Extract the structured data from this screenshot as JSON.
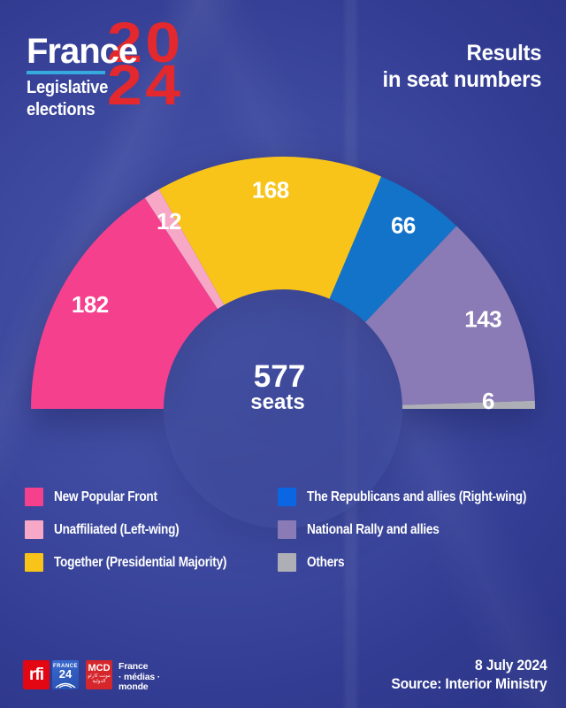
{
  "header": {
    "logo": {
      "brand": "France",
      "year_lines": [
        "20",
        "24"
      ],
      "tagline_lines": [
        "Legislative",
        "elections"
      ],
      "brand_color": "#ffffff",
      "year_color": "#e3282e",
      "underline_color": "#35aadc"
    },
    "title_lines": [
      "Results",
      "in seat numbers"
    ]
  },
  "chart_data": {
    "type": "half-donut",
    "title": "Results in seat numbers",
    "total": 577,
    "total_label": {
      "value": "577",
      "unit": "seats"
    },
    "segments": [
      {
        "label": "New Popular Front",
        "value": 182,
        "color": "#f4408d"
      },
      {
        "label": "Unaffiliated (Left-wing)",
        "value": 12,
        "color": "#f7a8c6"
      },
      {
        "label": "Together (Presidential Majority)",
        "value": 168,
        "color": "#f8c41a"
      },
      {
        "label": "The Republicans and allies (Right-wing)",
        "value": 66,
        "color": "#1273c9",
        "legend_color": "#0b66e3"
      },
      {
        "label": "National Rally and allies",
        "value": 143,
        "color": "#8a7ab5"
      },
      {
        "label": "Others",
        "value": 6,
        "color": "#aeaeb6",
        "label_r": 232,
        "label_dy": -5
      }
    ],
    "layout": {
      "start_angle": 180,
      "end_angle": 0,
      "center": [
        320,
        462
      ],
      "outer_radius": 285,
      "inner_radius": 135,
      "label_radius": 248,
      "hole_color": "#4755a9",
      "legend_position": "bottom-two-columns"
    }
  },
  "footer": {
    "logos": {
      "rfi": {
        "text": "rfi",
        "bg": "#e30613"
      },
      "france24": {
        "top": "FRANCE",
        "num": "24",
        "bg": "#2e5ec0"
      },
      "mcd": {
        "text": "MCD",
        "arabic_1": "مونت كارلو",
        "arabic_2": "الدولية",
        "bg": "#d5262c"
      },
      "fmm": {
        "line1": "France",
        "line2": "médias",
        "line3": "monde"
      }
    },
    "date": "8 July 2024",
    "source": "Source: Interior Ministry"
  }
}
